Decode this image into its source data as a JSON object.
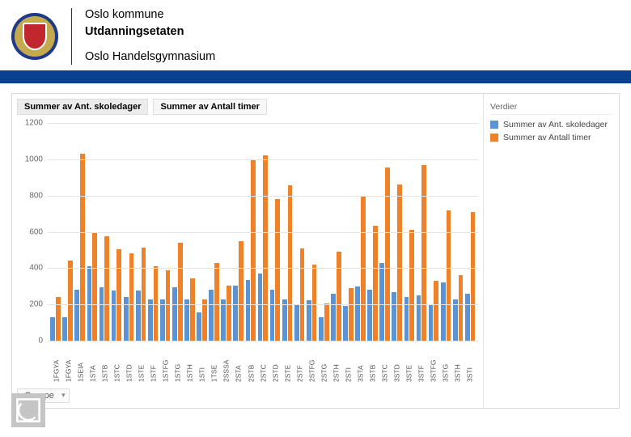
{
  "header": {
    "line1": "Oslo kommune",
    "line2": "Utdanningsetaten",
    "line3": "Oslo Handelsgymnasium"
  },
  "tabs": [
    "Summer av Ant. skoledager",
    "Summer av Antall timer"
  ],
  "active_tab": 0,
  "legend_title": "Verdier",
  "legend": [
    {
      "label": "Summer av Ant. skoledager",
      "color": "#5b93d3"
    },
    {
      "label": "Summer av Antall timer",
      "color": "#ef8228"
    }
  ],
  "filter_label": "Gruppe",
  "chart": {
    "type": "bar",
    "ylim": [
      0,
      1200
    ],
    "ytick_step": 200,
    "background": "#ffffff",
    "grid_color": "#e4e4e4",
    "series_colors": [
      "#5b93d3",
      "#ef8228"
    ],
    "categories": [
      "1FGYA",
      "1FGYA",
      "1SEIA",
      "1STA",
      "1STB",
      "1STC",
      "1STD",
      "1STE",
      "1STF",
      "1STFG",
      "1STG",
      "1STH",
      "1STI",
      "1TSE",
      "2SSSA",
      "2STA",
      "2STB",
      "2STC",
      "2STD",
      "2STE",
      "2STF",
      "2STFG",
      "2STG",
      "2STH",
      "2STI",
      "3STA",
      "3STB",
      "3STC",
      "3STD",
      "3STE",
      "3STF",
      "3STFG",
      "3STG",
      "3STH",
      "3STI"
    ],
    "series_a": [
      130,
      130,
      280,
      410,
      295,
      275,
      240,
      275,
      230,
      230,
      295,
      230,
      155,
      280,
      230,
      305,
      335,
      370,
      280,
      230,
      200,
      225,
      130,
      260,
      190,
      300,
      280,
      430,
      270,
      240,
      250,
      200,
      320,
      230,
      260
    ],
    "series_b": [
      240,
      440,
      1030,
      595,
      575,
      505,
      480,
      515,
      410,
      390,
      540,
      345,
      230,
      430,
      305,
      550,
      1000,
      1020,
      780,
      855,
      510,
      420,
      205,
      490,
      290,
      795,
      635,
      955,
      860,
      610,
      970,
      330,
      720,
      360,
      710
    ]
  }
}
